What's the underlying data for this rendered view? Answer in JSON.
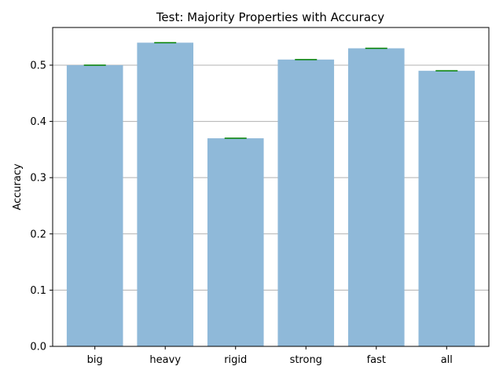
{
  "chart_data": {
    "type": "bar",
    "title": "Test: Majority Properties with Accuracy",
    "xlabel": "",
    "ylabel": "Accuracy",
    "categories": [
      "big",
      "heavy",
      "rigid",
      "strong",
      "fast",
      "all"
    ],
    "values": [
      0.5,
      0.54,
      0.37,
      0.51,
      0.53,
      0.49
    ],
    "ylim": [
      0,
      0.567
    ],
    "yticks": [
      0.0,
      0.1,
      0.2,
      0.3,
      0.4,
      0.5
    ],
    "ytick_labels": [
      "0.0",
      "0.1",
      "0.2",
      "0.3",
      "0.4",
      "0.5"
    ],
    "grid": "horizontal",
    "bar_color": "#8fb9d9",
    "marker_color": "#008000",
    "grid_color": "#b0b0b0"
  }
}
